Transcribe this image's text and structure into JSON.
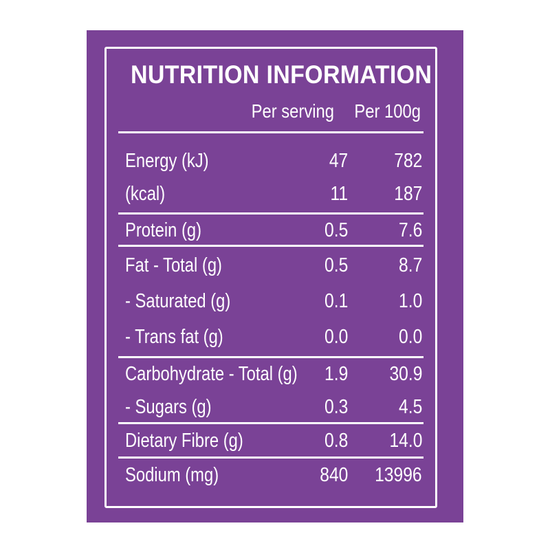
{
  "title": "NUTRITION INFORMATION",
  "columns": {
    "per_serving": "Per serving",
    "per_100g": "Per 100g"
  },
  "rows": [
    {
      "label": "Energy (kJ)",
      "serving": "47",
      "per100": "782"
    },
    {
      "label": "(kcal)",
      "serving": "11",
      "per100": "187"
    },
    {
      "label": "Protein (g)",
      "serving": "0.5",
      "per100": "7.6"
    },
    {
      "label": "Fat - Total (g)",
      "serving": "0.5",
      "per100": "8.7"
    },
    {
      "label": "- Saturated (g)",
      "serving": "0.1",
      "per100": "1.0"
    },
    {
      "label": "- Trans fat (g)",
      "serving": "0.0",
      "per100": "0.0"
    },
    {
      "label": "Carbohydrate - Total (g)",
      "serving": "1.9",
      "per100": "30.9"
    },
    {
      "label": "- Sugars (g)",
      "serving": "0.3",
      "per100": "4.5"
    },
    {
      "label": "Dietary Fibre (g)",
      "serving": "0.8",
      "per100": "14.0"
    },
    {
      "label": "Sodium (mg)",
      "serving": "840",
      "per100": "13996"
    }
  ],
  "colors": {
    "panel": "#7a4296",
    "text": "#ffffff"
  }
}
